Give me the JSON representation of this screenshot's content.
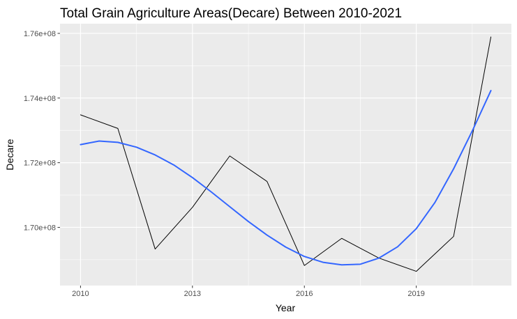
{
  "chart_data": {
    "type": "line",
    "title": "Total Grain Agriculture Areas(Decare) Between 2010-2021",
    "xlabel": "Year",
    "ylabel": "Decare",
    "x_ticks": [
      2010,
      2013,
      2016,
      2019
    ],
    "x_tick_labels": [
      "2010",
      "2013",
      "2016",
      "2019"
    ],
    "y_ticks": [
      170000000,
      172000000,
      174000000,
      176000000
    ],
    "y_tick_labels": [
      "1.70e+08",
      "1.72e+08",
      "1.74e+08",
      "1.76e+08"
    ],
    "xlim": [
      2009.45,
      2021.55
    ],
    "ylim": [
      168200000,
      176300000
    ],
    "grid": true,
    "panel_background": "#ebebeb",
    "series": [
      {
        "kind": "data",
        "color": "#000000",
        "x": [
          2010,
          2011,
          2012,
          2013,
          2014,
          2015,
          2016,
          2017,
          2018,
          2019,
          2020,
          2021
        ],
        "y": [
          173480000,
          173060000,
          169330000,
          170620000,
          172210000,
          171420000,
          168820000,
          169660000,
          169050000,
          168640000,
          169720000,
          175890000
        ]
      },
      {
        "kind": "smooth",
        "color": "#3366ff",
        "x": [
          2010,
          2010.5,
          2011,
          2011.5,
          2012,
          2012.5,
          2013,
          2013.5,
          2014,
          2014.5,
          2015,
          2015.5,
          2016,
          2016.5,
          2017,
          2017.5,
          2018,
          2018.5,
          2019,
          2019.5,
          2020,
          2020.5,
          2021
        ],
        "y": [
          172560000,
          172670000,
          172630000,
          172480000,
          172240000,
          171930000,
          171540000,
          171100000,
          170640000,
          170180000,
          169760000,
          169390000,
          169100000,
          168920000,
          168840000,
          168860000,
          169050000,
          169400000,
          169960000,
          170770000,
          171810000,
          172980000,
          174230000
        ]
      }
    ]
  }
}
